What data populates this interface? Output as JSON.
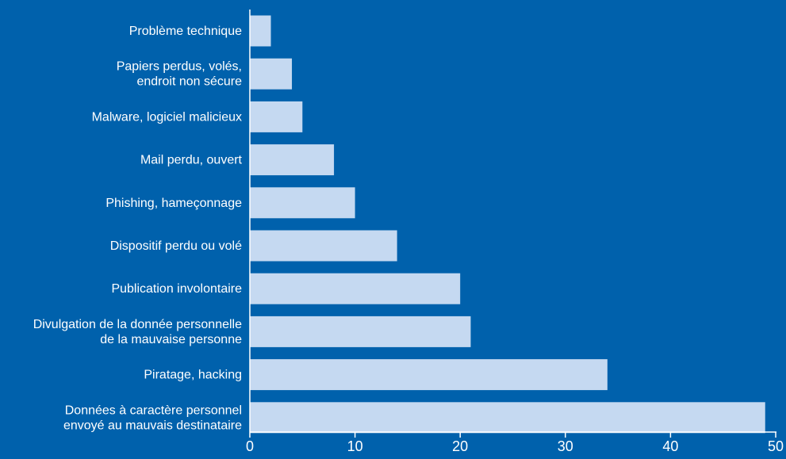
{
  "colors": {
    "background": "#0061ac",
    "bar": "#c5d9f1",
    "axis": "#ffffff",
    "text": "#ffffff"
  },
  "chart_data": {
    "type": "bar",
    "orientation": "horizontal",
    "categories": [
      [
        "Problème technique"
      ],
      [
        "Papiers perdus, volés,",
        "endroit non sécure"
      ],
      [
        "Malware, logiciel malicieux"
      ],
      [
        "Mail perdu, ouvert"
      ],
      [
        "Phishing, hameçonnage"
      ],
      [
        "Dispositif perdu ou volé"
      ],
      [
        "Publication involontaire"
      ],
      [
        "Divulgation de la donnée personnelle",
        "de la mauvaise personne"
      ],
      [
        "Piratage, hacking"
      ],
      [
        "Données à caractère personnel",
        "envoyé au mauvais destinataire"
      ]
    ],
    "values": [
      2,
      4,
      5,
      8,
      10,
      14,
      20,
      21,
      34,
      49
    ],
    "xlim": [
      0,
      50
    ],
    "xticks": [
      "0",
      "10",
      "20",
      "30",
      "40",
      "50"
    ],
    "grid": false,
    "legend": "none"
  }
}
